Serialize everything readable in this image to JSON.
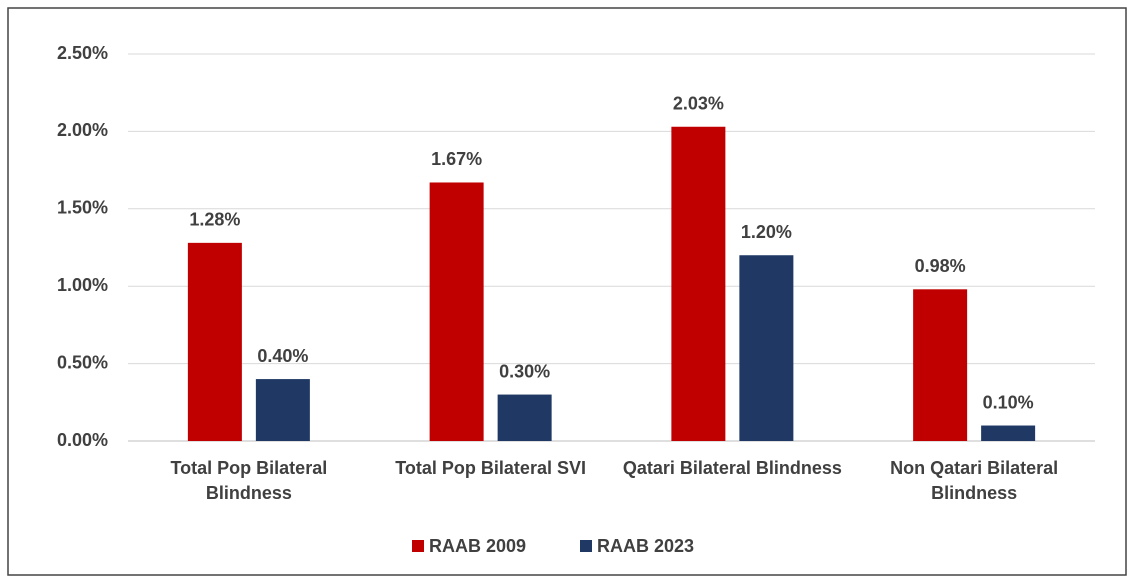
{
  "chart_data": {
    "type": "bar",
    "categories": [
      "Total Pop Bilateral Blindness",
      "Total Pop Bilateral SVI",
      "Qatari Bilateral Blindness",
      "Non Qatari Bilateral Blindness"
    ],
    "series": [
      {
        "name": "RAAB 2009",
        "color": "#c00000",
        "values": [
          1.28,
          1.67,
          2.03,
          0.98
        ],
        "value_labels": [
          "1.28%",
          "1.67%",
          "2.03%",
          "0.98%"
        ]
      },
      {
        "name": "RAAB 2023",
        "color": "#1f3864",
        "values": [
          0.4,
          0.3,
          1.2,
          0.1
        ],
        "value_labels": [
          "0.40%",
          "0.30%",
          "1.20%",
          "0.10%"
        ]
      }
    ],
    "ylim": [
      0,
      2.5
    ],
    "yticks": [
      {
        "value": 0,
        "label": "0.00%"
      },
      {
        "value": 0.5,
        "label": "0.50%"
      },
      {
        "value": 1,
        "label": "1.00%"
      },
      {
        "value": 1.5,
        "label": "1.50%"
      },
      {
        "value": 2,
        "label": "2.00%"
      },
      {
        "value": 2.5,
        "label": "2.50%"
      }
    ],
    "grid": true,
    "legend": "bottom"
  }
}
